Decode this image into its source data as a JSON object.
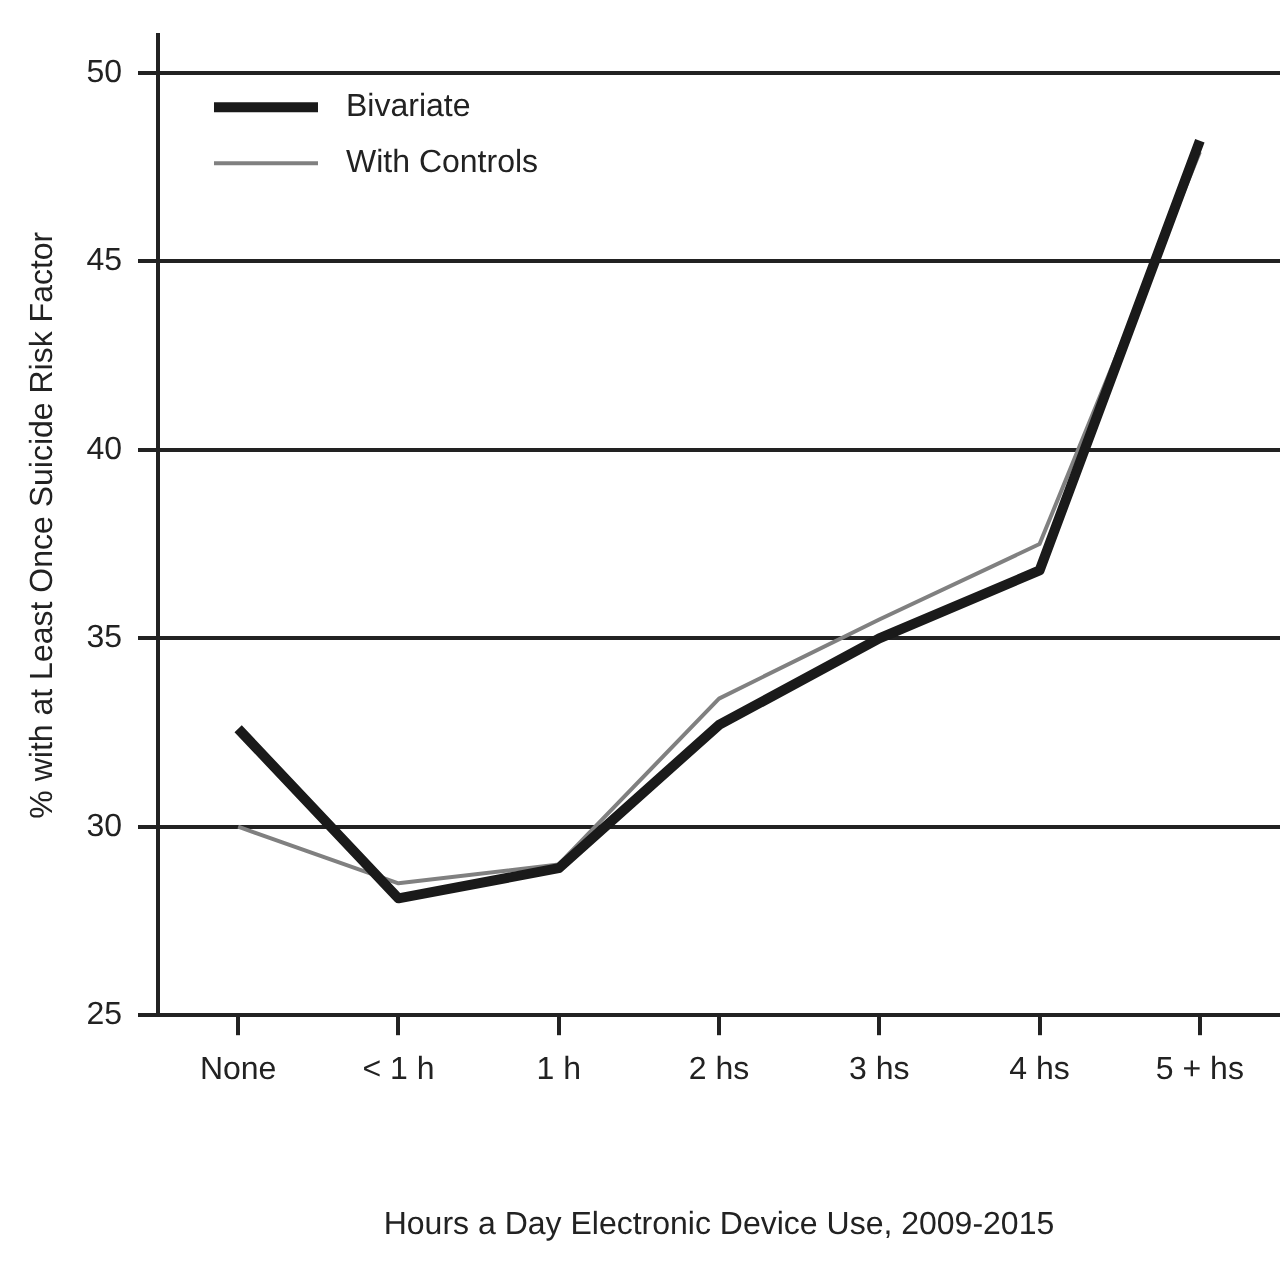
{
  "chart_data": {
    "type": "line",
    "xlabel": "Hours a Day Electronic Device Use, 2009-2015",
    "ylabel": "% with at Least Once Suicide Risk Factor",
    "categories": [
      "None",
      "< 1 h",
      "1 h",
      "2 hs",
      "3 hs",
      "4 hs",
      "5 + hs"
    ],
    "series": [
      {
        "name": "Bivariate",
        "color": "#1a1a1a",
        "values": [
          32.6,
          28.1,
          28.9,
          32.7,
          35.0,
          36.8,
          48.2
        ]
      },
      {
        "name": "With Controls",
        "color": "#808080",
        "values": [
          30.0,
          28.5,
          29.0,
          33.4,
          35.5,
          37.5,
          47.9
        ]
      }
    ],
    "ylim": [
      25,
      51
    ],
    "yticks": [
      25,
      30,
      35,
      40,
      45,
      50
    ],
    "grid": "y",
    "legend": "top left",
    "marker": "none",
    "line_style": "solid"
  }
}
